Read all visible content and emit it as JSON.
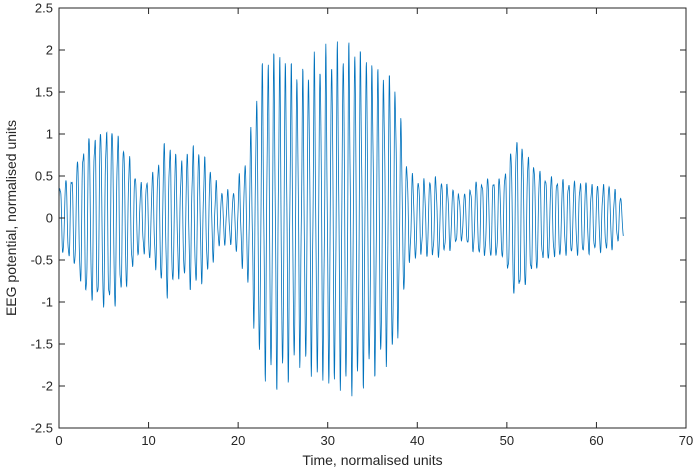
{
  "chart_data": {
    "type": "line",
    "title": "",
    "xlabel": "Time, normalised units",
    "ylabel": "EEG potential, normalised units",
    "xlim": [
      0,
      70
    ],
    "ylim": [
      -2.5,
      2.5
    ],
    "xticks": [
      0,
      10,
      20,
      30,
      40,
      50,
      60,
      70
    ],
    "xtick_labels": [
      "0",
      "10",
      "20",
      "30",
      "40",
      "50",
      "60",
      "70"
    ],
    "yticks": [
      -2.5,
      -2,
      -1.5,
      -1,
      -0.5,
      0,
      0.5,
      1,
      1.5,
      2,
      2.5
    ],
    "ytick_labels": [
      "-2.5",
      "-2",
      "-1.5",
      "-1",
      "-0.5",
      "0",
      "0.5",
      "1",
      "1.5",
      "2",
      "2.5"
    ],
    "grid": false,
    "line_color": "#0072BD",
    "axis_color": "#262626",
    "series": [
      {
        "x": [
          0,
          1.5,
          3,
          4.5,
          6,
          7.5,
          9,
          10.5,
          12,
          13.5,
          15,
          16.5,
          18,
          19.5,
          21,
          22.5,
          24,
          25.5,
          27,
          28.5,
          30,
          31.5,
          33,
          34.5,
          36,
          37.5,
          39,
          40.5,
          42,
          43.5,
          45,
          46.5,
          48,
          49.5,
          51,
          52.5,
          54,
          55.5,
          57,
          58.5,
          60,
          61.5,
          63
        ],
        "envelope": [
          0.45,
          0.6,
          1.1,
          1.2,
          1.25,
          0.95,
          0.45,
          0.6,
          1.05,
          0.75,
          0.95,
          0.75,
          0.35,
          0.35,
          0.8,
          1.9,
          2.1,
          2.0,
          1.8,
          2.0,
          2.1,
          2.15,
          2.2,
          2.05,
          1.9,
          1.8,
          0.6,
          0.5,
          0.55,
          0.45,
          0.3,
          0.5,
          0.55,
          0.55,
          1.15,
          0.85,
          0.6,
          0.55,
          0.5,
          0.5,
          0.45,
          0.45,
          0.25
        ]
      }
    ]
  }
}
